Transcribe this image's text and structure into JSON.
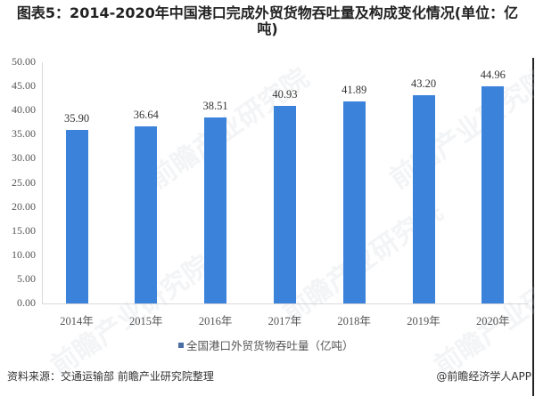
{
  "title": "图表5：2014-2020年中国港口完成外贸货物吞吐量及构成变化情况(单位：亿吨)",
  "chart_data": {
    "type": "bar",
    "title": "图表5：2014-2020年中国港口完成外贸货物吞吐量及构成变化情况(单位：亿吨)",
    "categories": [
      "2014年",
      "2015年",
      "2016年",
      "2017年",
      "2018年",
      "2019年",
      "2020年"
    ],
    "series": [
      {
        "name": "全国港口外贸货物吞吐量（亿吨）",
        "values": [
          35.9,
          36.64,
          38.51,
          40.93,
          41.89,
          43.2,
          44.96
        ],
        "labels": [
          "35.90",
          "36.64",
          "38.51",
          "40.93",
          "41.89",
          "43.20",
          "44.96"
        ],
        "color": "#3b82db"
      }
    ],
    "xlabel": "",
    "ylabel": "",
    "ylim": [
      0,
      50
    ],
    "yticks": [
      "50.00",
      "45.00",
      "40.00",
      "35.00",
      "30.00",
      "25.00",
      "20.00",
      "15.00",
      "10.00",
      "5.00",
      "0.00"
    ],
    "grid": false,
    "legend_position": "bottom"
  },
  "legend": {
    "label": "全国港口外贸货物吞吐量（亿吨）",
    "color": "#4a6fa5"
  },
  "footer": {
    "source": "资料来源：交通运输部 前瞻产业研究院整理",
    "credit": "@前瞻经济学人APP"
  },
  "watermark": "前瞻产业研究院"
}
